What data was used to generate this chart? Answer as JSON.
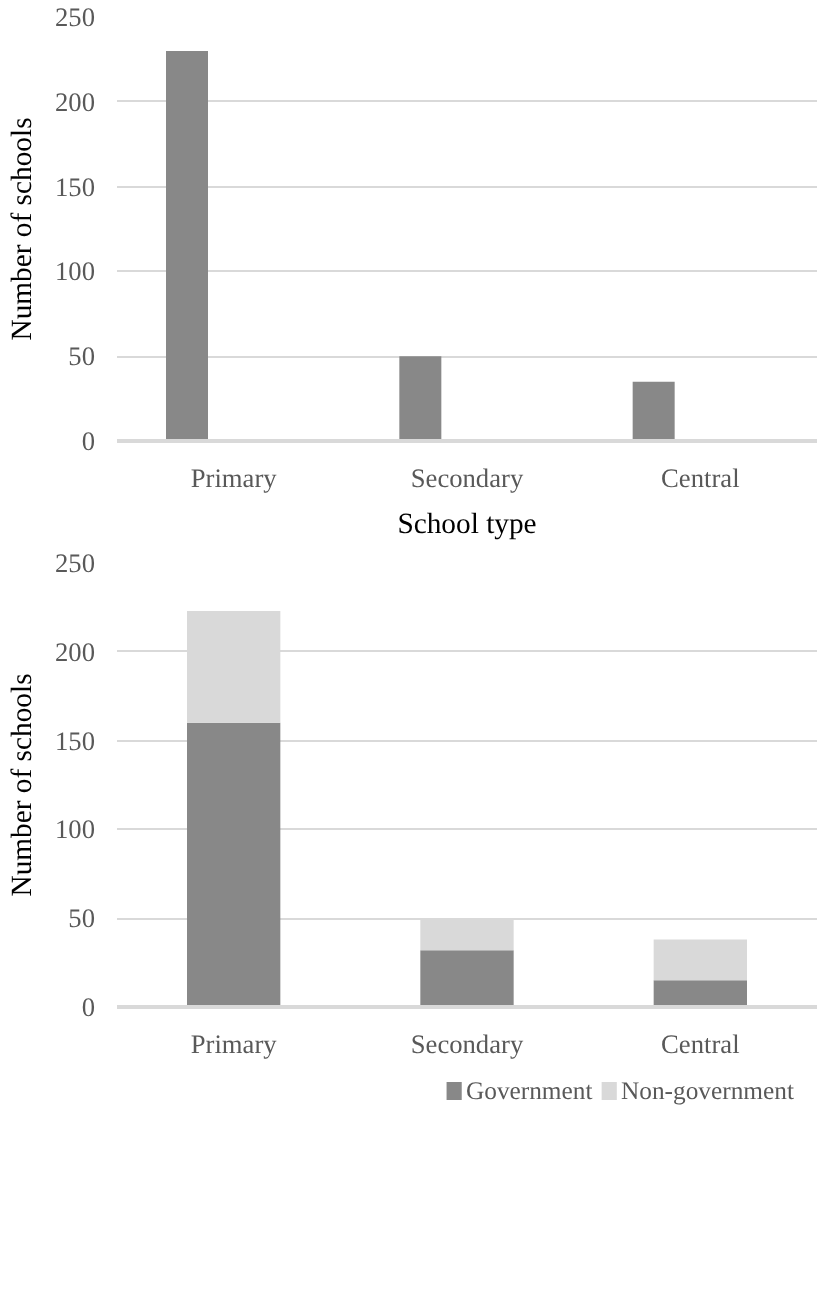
{
  "chart_data": [
    {
      "type": "bar",
      "categories": [
        "Primary",
        "Secondary",
        "Central"
      ],
      "xlabel": "School type",
      "ylabel": "Number of schools",
      "series": [
        {
          "color": "#888888",
          "values": [
            230,
            50,
            35
          ]
        }
      ],
      "ylim": [
        0,
        250
      ],
      "yticks": [
        0,
        50,
        100,
        150,
        200,
        250
      ],
      "grid": "y"
    },
    {
      "type": "bar",
      "categories": [
        "Primary",
        "Secondary",
        "Central"
      ],
      "ylabel": "Number of schools",
      "stacked": true,
      "series": [
        {
          "name": "Government",
          "color": "#888888",
          "values": [
            160,
            32,
            15
          ]
        },
        {
          "name": "Non-government",
          "color": "#d9d9d9",
          "values": [
            63,
            17,
            23
          ]
        }
      ],
      "ylim": [
        0,
        250
      ],
      "yticks": [
        0,
        50,
        100,
        150,
        200,
        250
      ],
      "grid": "y",
      "legend": "bottom"
    }
  ]
}
